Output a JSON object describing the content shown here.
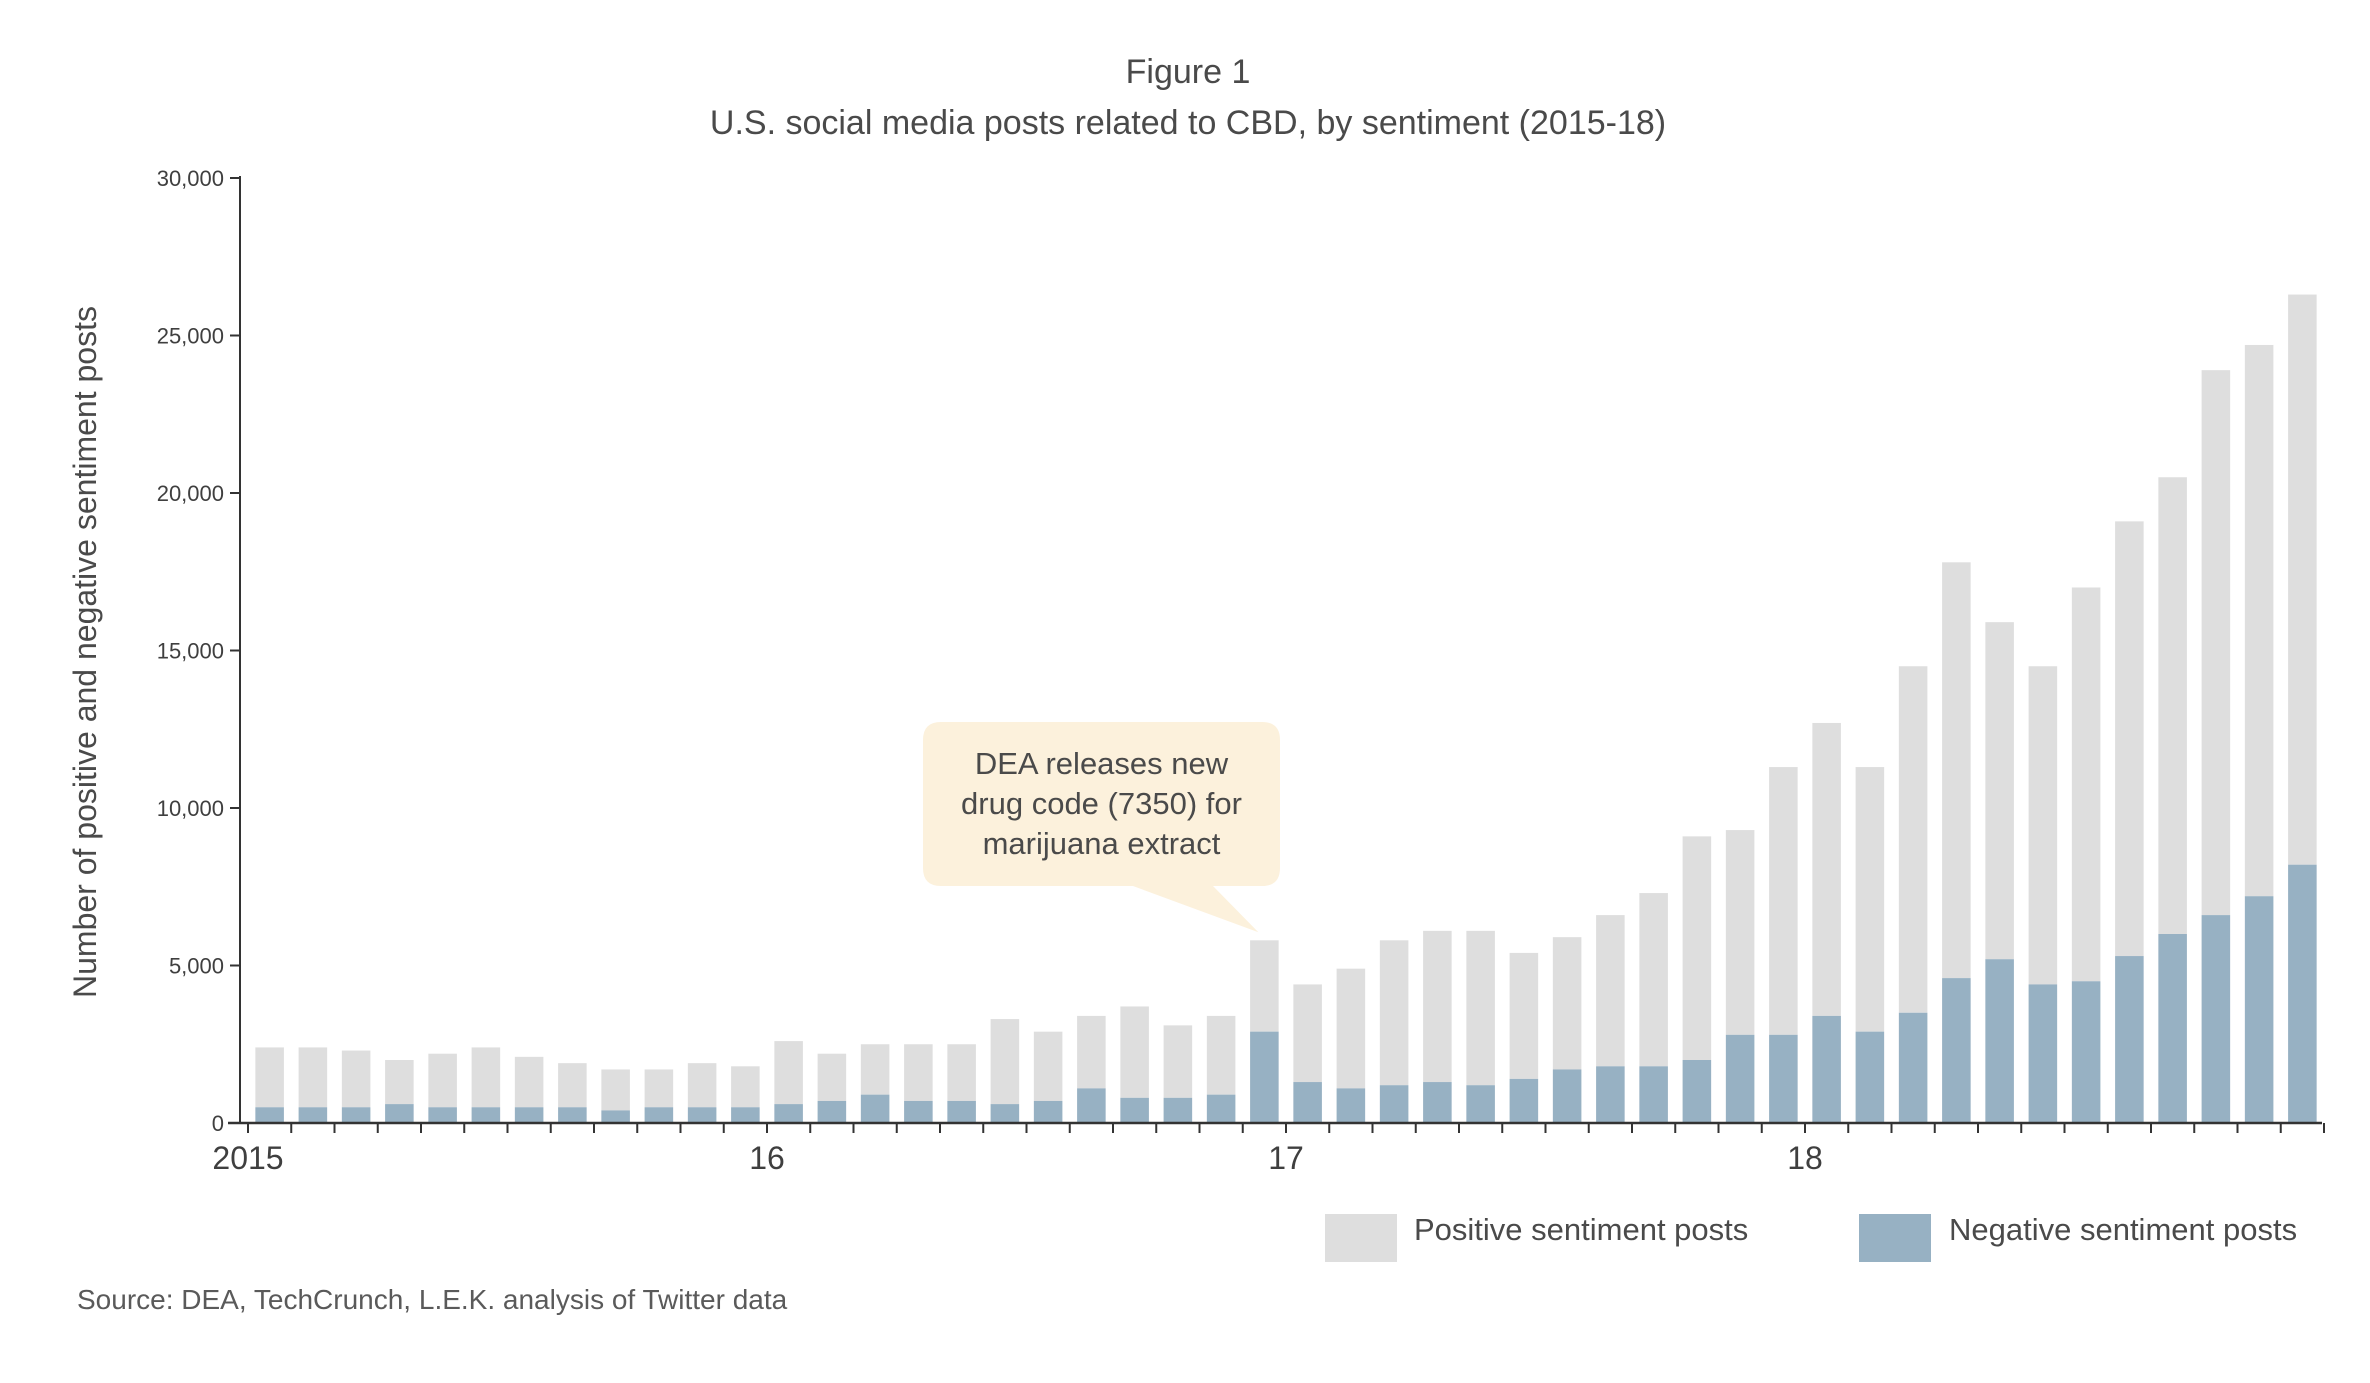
{
  "figure": {
    "label": "Figure 1",
    "title": "U.S. social media posts related to CBD, by sentiment (2015-18)",
    "source": "Source: DEA, TechCrunch, L.E.K. analysis of Twitter data"
  },
  "chart_data": {
    "type": "bar",
    "stacked": true,
    "ylabel": "Number of positive and negative sentiment posts",
    "xlabel": "",
    "ylim": [
      0,
      30000
    ],
    "yticks": [
      0,
      5000,
      10000,
      15000,
      20000,
      25000,
      30000
    ],
    "ytick_labels": [
      "0",
      "5,000",
      "10,000",
      "15,000",
      "20,000",
      "25,000",
      "30,000"
    ],
    "xtick_labels": [
      {
        "label": "2015",
        "index": 0
      },
      {
        "label": "16",
        "index": 12
      },
      {
        "label": "17",
        "index": 24
      },
      {
        "label": "18",
        "index": 36
      }
    ],
    "categories": [
      "2015-01",
      "2015-02",
      "2015-03",
      "2015-04",
      "2015-05",
      "2015-06",
      "2015-07",
      "2015-08",
      "2015-09",
      "2015-10",
      "2015-11",
      "2015-12",
      "2016-01",
      "2016-02",
      "2016-03",
      "2016-04",
      "2016-05",
      "2016-06",
      "2016-07",
      "2016-08",
      "2016-09",
      "2016-10",
      "2016-11",
      "2016-12",
      "2017-01",
      "2017-02",
      "2017-03",
      "2017-04",
      "2017-05",
      "2017-06",
      "2017-07",
      "2017-08",
      "2017-09",
      "2017-10",
      "2017-11",
      "2017-12",
      "2018-01",
      "2018-02",
      "2018-03",
      "2018-04",
      "2018-05",
      "2018-06",
      "2018-07",
      "2018-08",
      "2018-09",
      "2018-10",
      "2018-11",
      "2018-12"
    ],
    "series": [
      {
        "name": "Negative sentiment posts",
        "color": "#97b1c3",
        "values": [
          500,
          500,
          500,
          600,
          500,
          500,
          500,
          500,
          400,
          500,
          500,
          500,
          600,
          700,
          900,
          700,
          700,
          600,
          700,
          1100,
          800,
          800,
          900,
          2900,
          1300,
          1100,
          1200,
          1300,
          1200,
          1400,
          1700,
          1800,
          1800,
          2000,
          2800,
          2800,
          3400,
          2900,
          3500,
          4600,
          5200,
          4400,
          4500,
          5300,
          6000,
          6600,
          7200,
          8200
        ]
      },
      {
        "name": "Positive sentiment posts",
        "color": "#dedede",
        "values": [
          1900,
          1900,
          1800,
          1400,
          1700,
          1900,
          1600,
          1400,
          1300,
          1200,
          1400,
          1300,
          2000,
          1500,
          1600,
          1800,
          1800,
          2700,
          2200,
          2300,
          2900,
          2300,
          2500,
          2900,
          3100,
          3800,
          4600,
          4800,
          4900,
          4000,
          4200,
          4800,
          5500,
          7100,
          6500,
          8500,
          9300,
          8400,
          11000,
          13200,
          10700,
          10100,
          12500,
          13800,
          14500,
          17300,
          17500,
          18100
        ]
      }
    ],
    "legend": {
      "placement": "bottom-right",
      "order": [
        "Positive sentiment posts",
        "Negative sentiment posts"
      ]
    },
    "annotation": {
      "lines": [
        "DEA releases new",
        "drug code (7350) for",
        "marijuana extract"
      ],
      "target_index": 23,
      "fill": "#fcf1dc"
    },
    "grid": false
  }
}
